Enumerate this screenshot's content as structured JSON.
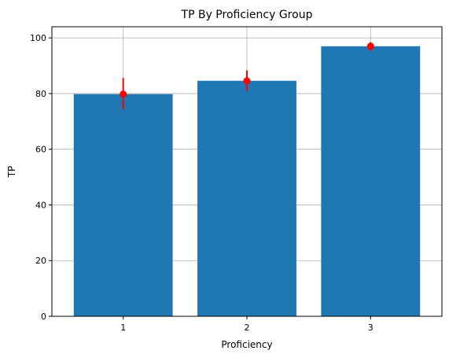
{
  "chart_data": {
    "type": "bar",
    "title": "TP By Proficiency Group",
    "xlabel": "Proficiency",
    "ylabel": "TP",
    "categories": [
      "1",
      "2",
      "3"
    ],
    "values": [
      79.8,
      84.6,
      97.0
    ],
    "error_bars": {
      "lower": [
        74.3,
        81.0,
        95.3
      ],
      "upper": [
        85.6,
        88.3,
        98.5
      ]
    },
    "ylim": [
      0,
      104
    ],
    "yticks": [
      0,
      20,
      40,
      60,
      80,
      100
    ],
    "grid": true,
    "colors": {
      "bar": "#1f77b4",
      "error": "#ff0000",
      "grid": "#b0b0b0"
    }
  }
}
